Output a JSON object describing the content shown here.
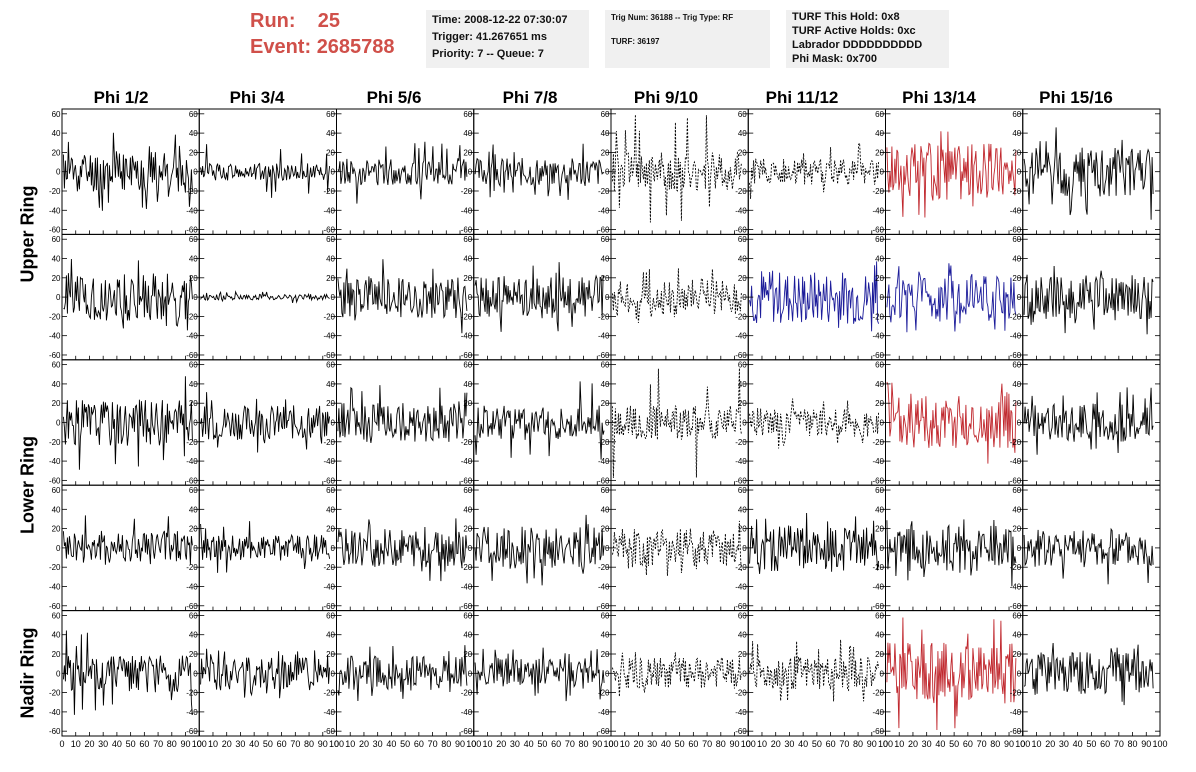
{
  "header": {
    "run_label": "Run:",
    "run_value": "25",
    "event_label": "Event:",
    "event_value": "2685788",
    "time_line": "Time: 2008-12-22 07:30:07",
    "trigger_line": "Trigger: 41.267651 ms",
    "priority_line": "Priority: 7 -- Queue: 7",
    "trig_line": "Trig Num: 36188 -- Trig Type: RF",
    "turf_line": "TURF: 36197",
    "turf_hold_line": "TURF This Hold: 0x8",
    "turf_active_line": "TURF Active Holds: 0xc",
    "labrador_line": "Labrador DDDDDDDDDD",
    "phi_mask_line": "Phi Mask: 0x700"
  },
  "columns": [
    "Phi 1/2",
    "Phi 3/4",
    "Phi 5/6",
    "Phi 7/8",
    "Phi 9/10",
    "Phi 11/12",
    "Phi 13/14",
    "Phi 15/16"
  ],
  "rows": [
    "Upper Ring",
    "Lower Ring",
    "Nadir Ring"
  ],
  "colors": {
    "trace_default": "#000000",
    "trace_red": "#c0272d",
    "trace_blue": "#1c1c9a",
    "title_red": "#d0504a",
    "info_bg": "#f0f0f0"
  },
  "chart_data": {
    "type": "line",
    "xlim": [
      0,
      100
    ],
    "ylim": [
      -65,
      65
    ],
    "xticks": [
      0,
      10,
      20,
      30,
      40,
      50,
      60,
      70,
      80,
      90,
      100
    ],
    "yticks": [
      -60,
      -40,
      -20,
      0,
      20,
      40,
      60
    ],
    "x_tick_labels": [
      "0",
      "10",
      "20",
      "30",
      "40",
      "50",
      "60",
      "70",
      "80",
      "90",
      "100"
    ],
    "y_tick_labels": [
      "-60",
      "-40",
      "-20",
      "0",
      "20",
      "40",
      "60"
    ],
    "panel_rows": 5,
    "panel_cols": 8,
    "trace_points": 130,
    "panels": [
      [
        {
          "color": "black",
          "style": "solid",
          "amplitude": 22,
          "spike": 43,
          "seed": 11
        },
        {
          "color": "black",
          "style": "solid",
          "amplitude": 9,
          "spike": 30,
          "seed": 12
        },
        {
          "color": "black",
          "style": "solid",
          "amplitude": 14,
          "spike": 35,
          "seed": 13
        },
        {
          "color": "black",
          "style": "solid",
          "amplitude": 15,
          "spike": 30,
          "seed": 14
        },
        {
          "color": "black",
          "style": "dashed",
          "amplitude": 20,
          "spike": 60,
          "seed": 15
        },
        {
          "color": "black",
          "style": "dashed",
          "amplitude": 14,
          "spike": 30,
          "seed": 16
        },
        {
          "color": "red",
          "style": "solid",
          "amplitude": 30,
          "spike": 55,
          "seed": 17
        },
        {
          "color": "black",
          "style": "solid",
          "amplitude": 26,
          "spike": 50,
          "seed": 18
        }
      ],
      [
        {
          "color": "black",
          "style": "solid",
          "amplitude": 25,
          "spike": 40,
          "seed": 21
        },
        {
          "color": "black",
          "style": "solid",
          "amplitude": 3,
          "spike": 6,
          "seed": 22
        },
        {
          "color": "black",
          "style": "solid",
          "amplitude": 22,
          "spike": 40,
          "seed": 23
        },
        {
          "color": "black",
          "style": "solid",
          "amplitude": 22,
          "spike": 40,
          "seed": 24
        },
        {
          "color": "black",
          "style": "dashed",
          "amplitude": 18,
          "spike": 30,
          "seed": 25
        },
        {
          "color": "blue",
          "style": "solid",
          "amplitude": 28,
          "spike": 40,
          "seed": 26
        },
        {
          "color": "blue",
          "style": "solid",
          "amplitude": 24,
          "spike": 40,
          "seed": 27
        },
        {
          "color": "black",
          "style": "solid",
          "amplitude": 24,
          "spike": 42,
          "seed": 28
        }
      ],
      [
        {
          "color": "black",
          "style": "solid",
          "amplitude": 24,
          "spike": 50,
          "seed": 31
        },
        {
          "color": "black",
          "style": "solid",
          "amplitude": 18,
          "spike": 35,
          "seed": 32
        },
        {
          "color": "black",
          "style": "solid",
          "amplitude": 22,
          "spike": 40,
          "seed": 33
        },
        {
          "color": "black",
          "style": "solid",
          "amplitude": 18,
          "spike": 45,
          "seed": 34
        },
        {
          "color": "black",
          "style": "dashed",
          "amplitude": 18,
          "spike": 60,
          "seed": 35
        },
        {
          "color": "black",
          "style": "dashed",
          "amplitude": 15,
          "spike": 30,
          "seed": 36
        },
        {
          "color": "red",
          "style": "solid",
          "amplitude": 28,
          "spike": 45,
          "seed": 37
        },
        {
          "color": "black",
          "style": "solid",
          "amplitude": 20,
          "spike": 40,
          "seed": 38
        }
      ],
      [
        {
          "color": "black",
          "style": "solid",
          "amplitude": 18,
          "spike": 35,
          "seed": 41
        },
        {
          "color": "black",
          "style": "solid",
          "amplitude": 14,
          "spike": 30,
          "seed": 42
        },
        {
          "color": "black",
          "style": "solid",
          "amplitude": 20,
          "spike": 35,
          "seed": 43
        },
        {
          "color": "black",
          "style": "solid",
          "amplitude": 22,
          "spike": 40,
          "seed": 44
        },
        {
          "color": "black",
          "style": "dashed",
          "amplitude": 20,
          "spike": 30,
          "seed": 45
        },
        {
          "color": "black",
          "style": "solid",
          "amplitude": 24,
          "spike": 40,
          "seed": 46
        },
        {
          "color": "black",
          "style": "solid",
          "amplitude": 24,
          "spike": 40,
          "seed": 47
        },
        {
          "color": "black",
          "style": "solid",
          "amplitude": 20,
          "spike": 40,
          "seed": 48
        }
      ],
      [
        {
          "color": "black",
          "style": "solid",
          "amplitude": 20,
          "spike": 45,
          "seed": 51
        },
        {
          "color": "black",
          "style": "solid",
          "amplitude": 18,
          "spike": 30,
          "seed": 52
        },
        {
          "color": "black",
          "style": "solid",
          "amplitude": 18,
          "spike": 30,
          "seed": 53
        },
        {
          "color": "black",
          "style": "solid",
          "amplitude": 16,
          "spike": 30,
          "seed": 54
        },
        {
          "color": "black",
          "style": "dashed",
          "amplitude": 16,
          "spike": 25,
          "seed": 55
        },
        {
          "color": "black",
          "style": "dashed",
          "amplitude": 18,
          "spike": 35,
          "seed": 56
        },
        {
          "color": "red",
          "style": "solid",
          "amplitude": 32,
          "spike": 60,
          "seed": 57
        },
        {
          "color": "black",
          "style": "solid",
          "amplitude": 22,
          "spike": 35,
          "seed": 58
        }
      ]
    ]
  }
}
